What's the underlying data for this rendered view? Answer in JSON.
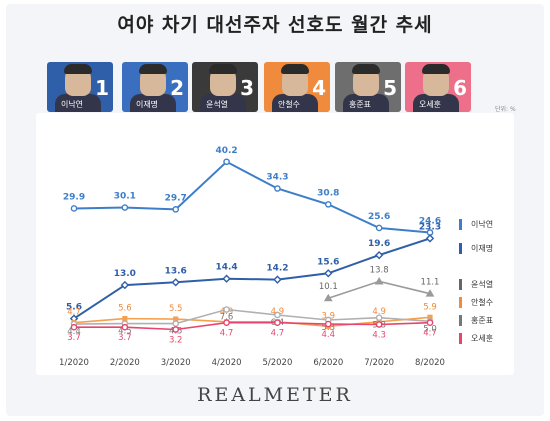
{
  "title": "여야 차기 대선주자 선호도 월간 추세",
  "unit_label": "단위: %",
  "logo": "REALMETER",
  "candidates": [
    {
      "name": "이낙연",
      "number": "1",
      "color": "#2f5fa8"
    },
    {
      "name": "이재명",
      "number": "2",
      "color": "#3a6fbf"
    },
    {
      "name": "윤석열",
      "number": "3",
      "color": "#3a3a3a"
    },
    {
      "name": "안철수",
      "number": "4",
      "color": "#f08a3c"
    },
    {
      "name": "홍준표",
      "number": "5",
      "color": "#6e6e6e"
    },
    {
      "name": "오세훈",
      "number": "6",
      "color": "#ee6f8a"
    }
  ],
  "chart_data": {
    "type": "line",
    "title": "여야 차기 대선주자 선호도 월간 추세",
    "xlabel": "",
    "ylabel": "",
    "ylim": [
      0,
      45
    ],
    "categories": [
      "1/2020",
      "2/2020",
      "3/2020",
      "4/2020",
      "5/2020",
      "6/2020",
      "7/2020",
      "8/2020"
    ],
    "series": [
      {
        "name": "이낙연",
        "color": "#3d7ec9",
        "label_color": "#3d7ec9",
        "values": [
          29.9,
          30.1,
          29.7,
          40.2,
          34.3,
          30.8,
          25.6,
          24.6
        ]
      },
      {
        "name": "이재명",
        "color": "#2f5fa8",
        "label_color": "#2f5fa8",
        "values": [
          5.6,
          13.0,
          13.6,
          14.4,
          14.2,
          15.6,
          19.6,
          23.3
        ]
      },
      {
        "name": "윤석열",
        "color": "#9a9a9a",
        "label_color": "#666666",
        "values": [
          null,
          null,
          null,
          null,
          null,
          10.1,
          13.8,
          11.1
        ]
      },
      {
        "name": "안철수",
        "color": "#f5a04d",
        "label_color": "#f08a3c",
        "values": [
          4.7,
          5.6,
          5.5,
          4.9,
          4.9,
          3.9,
          4.9,
          5.9
        ]
      },
      {
        "name": "홍준표",
        "color": "#b0b0b0",
        "label_color": "#777777",
        "values": [
          4.4,
          4.5,
          4.5,
          7.6,
          6.4,
          5.3,
          5.8,
          5.0
        ]
      },
      {
        "name": "오세훈",
        "color": "#e8456e",
        "label_color": "#e8456e",
        "values": [
          3.7,
          3.7,
          3.2,
          4.7,
          4.7,
          4.4,
          4.3,
          4.7
        ]
      }
    ],
    "legend_position": "right"
  }
}
